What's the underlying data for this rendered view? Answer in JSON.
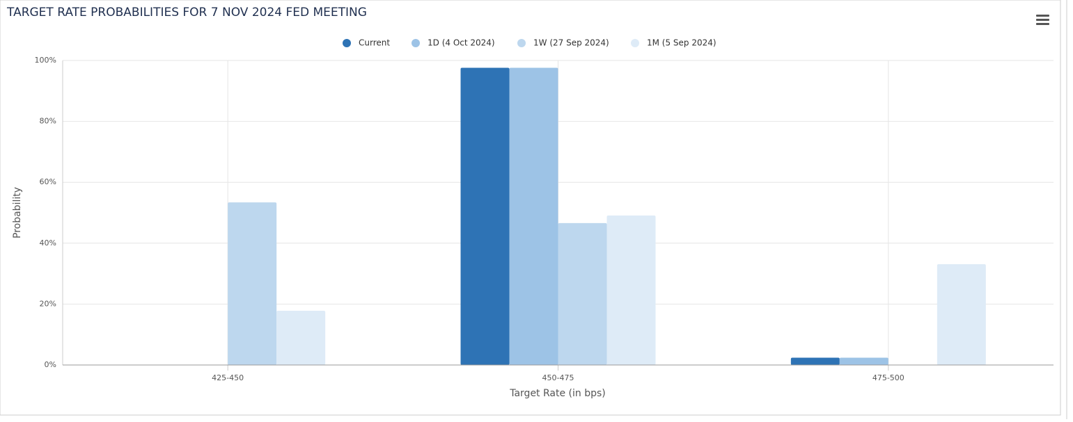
{
  "chart_data": {
    "type": "bar",
    "title": "TARGET RATE PROBABILITIES FOR 7 NOV 2024 FED MEETING",
    "x_label": "Target Rate (in bps)",
    "y_label": "Probability",
    "categories": [
      "425-450",
      "450-475",
      "475-500"
    ],
    "series": [
      {
        "name": "Current",
        "color": "#2e73b5",
        "values": [
          0,
          97.6,
          2.4
        ]
      },
      {
        "name": "1D (4 Oct 2024)",
        "color": "#9dc3e6",
        "values": [
          0,
          97.6,
          2.4
        ]
      },
      {
        "name": "1W (27 Sep 2024)",
        "color": "#bdd7ee",
        "values": [
          53.4,
          46.6,
          0
        ]
      },
      {
        "name": "1M (5 Sep 2024)",
        "color": "#deebf7",
        "values": [
          17.8,
          49.1,
          33.1
        ]
      }
    ],
    "ylim": [
      0,
      100
    ],
    "yticks": [
      {
        "value": 0,
        "label": "0%"
      },
      {
        "value": 20,
        "label": "20%"
      },
      {
        "value": 40,
        "label": "40%"
      },
      {
        "value": 60,
        "label": "60%"
      },
      {
        "value": 80,
        "label": "80%"
      },
      {
        "value": 100,
        "label": "100%"
      }
    ],
    "grid": true
  }
}
